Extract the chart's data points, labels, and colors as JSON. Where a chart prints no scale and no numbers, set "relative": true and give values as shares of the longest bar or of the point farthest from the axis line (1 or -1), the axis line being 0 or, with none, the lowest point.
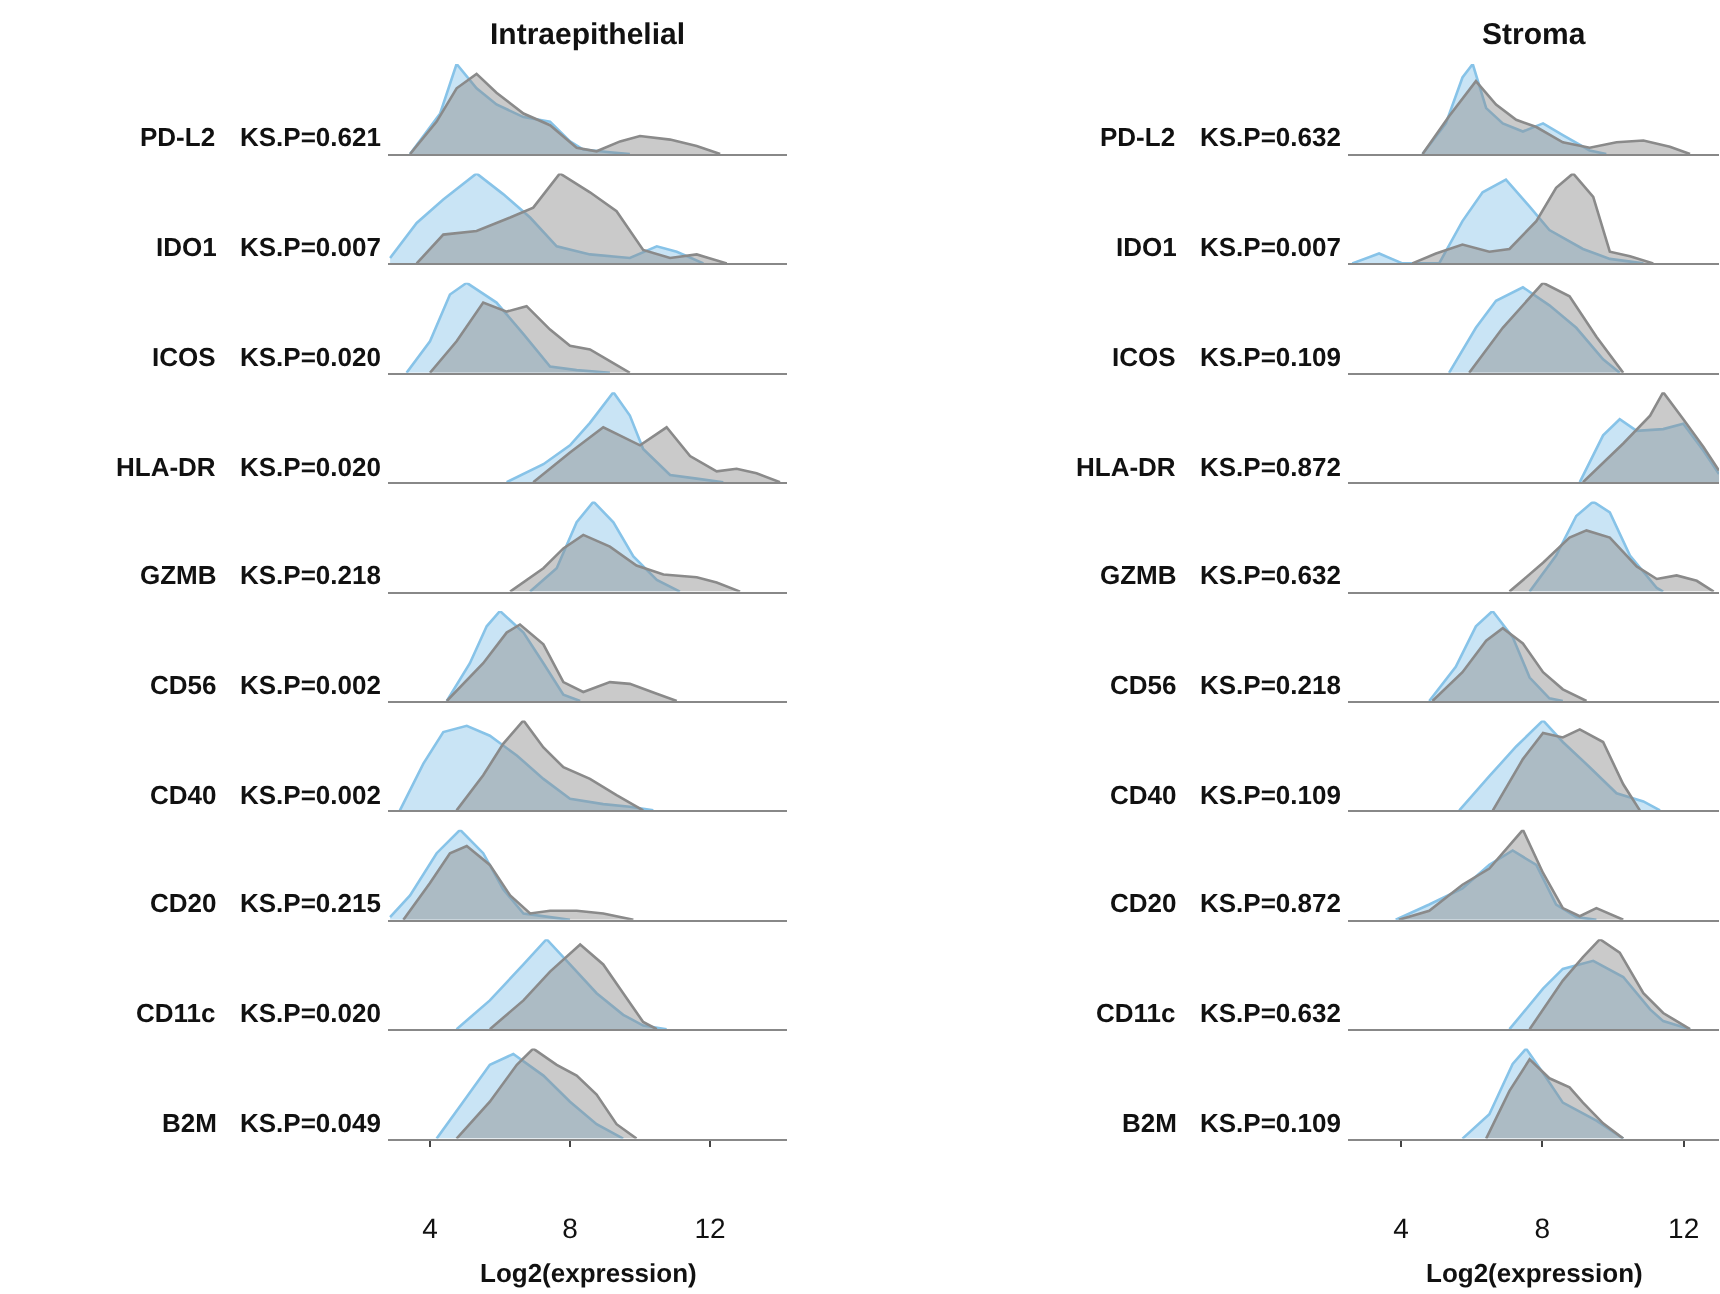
{
  "chart_data": [
    {
      "type": "area",
      "relative": true,
      "title": "Intraepithelial",
      "ylabel": "PD-L2",
      "annotations": [
        "KS.P=0.621"
      ],
      "xlim": [
        2.8,
        14.2
      ],
      "tick_labels": false,
      "series": [
        {
          "color": "#87c3e8",
          "x": [
            3.43,
            4.29,
            4.76,
            5.33,
            5.9,
            6.67,
            7.43,
            8.0,
            8.38,
            9.14,
            9.71
          ],
          "values": [
            0,
            0.45,
            1,
            0.73,
            0.55,
            0.41,
            0.36,
            0.14,
            0.05,
            0.02,
            0
          ]
        },
        {
          "color": "#8a8a8a",
          "x": [
            3.43,
            4.19,
            4.76,
            5.33,
            5.9,
            6.67,
            7.43,
            8.19,
            8.76,
            9.43,
            10.0,
            10.86,
            11.62,
            12.29
          ],
          "values": [
            0,
            0.36,
            0.73,
            0.89,
            0.68,
            0.45,
            0.32,
            0.07,
            0.03,
            0.14,
            0.2,
            0.16,
            0.09,
            0
          ]
        }
      ]
    },
    {
      "type": "area",
      "relative": true,
      "ylabel": "IDO1",
      "annotations": [
        "KS.P=0.007"
      ],
      "xlim": [
        2.8,
        14.2
      ],
      "tick_labels": false,
      "series": [
        {
          "color": "#87c3e8",
          "x": [
            2.86,
            3.62,
            4.38,
            5.33,
            6.09,
            6.86,
            7.62,
            8.57,
            9.71,
            10.48,
            11.05,
            11.81
          ],
          "values": [
            0.06,
            0.45,
            0.71,
            1,
            0.77,
            0.51,
            0.19,
            0.1,
            0.06,
            0.19,
            0.13,
            0
          ]
        },
        {
          "color": "#8a8a8a",
          "x": [
            3.62,
            4.38,
            5.33,
            6.29,
            6.95,
            7.71,
            8.57,
            9.33,
            10.09,
            10.86,
            11.62,
            12.48
          ],
          "values": [
            0,
            0.32,
            0.36,
            0.51,
            0.62,
            1,
            0.79,
            0.58,
            0.15,
            0.06,
            0.1,
            0
          ]
        }
      ]
    },
    {
      "type": "area",
      "relative": true,
      "ylabel": "ICOS",
      "annotations": [
        "KS.P=0.020"
      ],
      "xlim": [
        2.8,
        14.2
      ],
      "tick_labels": false,
      "series": [
        {
          "color": "#87c3e8",
          "x": [
            3.33,
            4.0,
            4.57,
            5.05,
            5.9,
            6.67,
            7.43,
            8.19,
            9.14
          ],
          "values": [
            0,
            0.35,
            0.87,
            1,
            0.78,
            0.43,
            0.07,
            0.03,
            0
          ]
        },
        {
          "color": "#8a8a8a",
          "x": [
            4.0,
            4.76,
            5.52,
            6.19,
            6.76,
            7.43,
            8.0,
            8.57,
            9.14,
            9.71
          ],
          "values": [
            0,
            0.35,
            0.78,
            0.68,
            0.74,
            0.48,
            0.3,
            0.26,
            0.13,
            0
          ]
        }
      ]
    },
    {
      "type": "area",
      "relative": true,
      "ylabel": "HLA-DR",
      "annotations": [
        "KS.P=0.020"
      ],
      "xlim": [
        2.8,
        14.2
      ],
      "tick_labels": false,
      "series": [
        {
          "color": "#87c3e8",
          "x": [
            6.19,
            7.24,
            8.0,
            8.57,
            9.24,
            9.71,
            10.09,
            10.86,
            11.62,
            12.38
          ],
          "values": [
            0,
            0.2,
            0.41,
            0.66,
            1,
            0.74,
            0.37,
            0.08,
            0.04,
            0
          ]
        },
        {
          "color": "#8a8a8a",
          "x": [
            6.95,
            8.0,
            8.95,
            10.0,
            10.76,
            11.43,
            12.19,
            12.76,
            13.33,
            14.0
          ],
          "values": [
            0,
            0.33,
            0.61,
            0.41,
            0.61,
            0.29,
            0.12,
            0.15,
            0.1,
            0
          ]
        }
      ]
    },
    {
      "type": "area",
      "relative": true,
      "ylabel": "GZMB",
      "annotations": [
        "KS.P=0.218"
      ],
      "xlim": [
        2.8,
        14.2
      ],
      "tick_labels": false,
      "series": [
        {
          "color": "#87c3e8",
          "x": [
            6.86,
            7.62,
            8.19,
            8.67,
            9.24,
            9.81,
            10.48,
            11.14
          ],
          "values": [
            0,
            0.26,
            0.77,
            1,
            0.77,
            0.39,
            0.13,
            0
          ]
        },
        {
          "color": "#8a8a8a",
          "x": [
            6.29,
            7.24,
            7.81,
            8.38,
            9.14,
            9.9,
            10.67,
            11.62,
            12.19,
            12.86
          ],
          "values": [
            0,
            0.26,
            0.48,
            0.63,
            0.5,
            0.29,
            0.19,
            0.16,
            0.1,
            0
          ]
        }
      ]
    },
    {
      "type": "area",
      "relative": true,
      "ylabel": "CD56",
      "annotations": [
        "KS.P=0.002"
      ],
      "xlim": [
        2.8,
        14.2
      ],
      "tick_labels": false,
      "series": [
        {
          "color": "#87c3e8",
          "x": [
            4.48,
            5.14,
            5.62,
            6.0,
            6.67,
            7.24,
            7.81,
            8.29
          ],
          "values": [
            0,
            0.42,
            0.83,
            1,
            0.76,
            0.42,
            0.07,
            0
          ]
        },
        {
          "color": "#8a8a8a",
          "x": [
            4.48,
            5.52,
            6.19,
            6.57,
            7.24,
            7.81,
            8.38,
            9.14,
            9.71,
            10.48,
            11.05
          ],
          "values": [
            0,
            0.42,
            0.76,
            0.85,
            0.63,
            0.21,
            0.1,
            0.21,
            0.19,
            0.08,
            0
          ]
        }
      ]
    },
    {
      "type": "area",
      "relative": true,
      "ylabel": "CD40",
      "annotations": [
        "KS.P=0.002"
      ],
      "xlim": [
        2.8,
        14.2
      ],
      "tick_labels": false,
      "series": [
        {
          "color": "#87c3e8",
          "x": [
            3.14,
            3.81,
            4.38,
            5.05,
            5.71,
            6.48,
            7.24,
            8.0,
            8.95,
            9.71,
            10.38
          ],
          "values": [
            0,
            0.52,
            0.87,
            0.94,
            0.83,
            0.61,
            0.35,
            0.13,
            0.07,
            0.04,
            0
          ]
        },
        {
          "color": "#8a8a8a",
          "x": [
            4.76,
            5.52,
            6.09,
            6.67,
            7.24,
            7.81,
            8.57,
            9.33,
            10.09
          ],
          "values": [
            0,
            0.39,
            0.74,
            1,
            0.7,
            0.48,
            0.35,
            0.17,
            0
          ]
        }
      ]
    },
    {
      "type": "area",
      "relative": true,
      "ylabel": "CD20",
      "annotations": [
        "KS.P=0.215"
      ],
      "xlim": [
        2.8,
        14.2
      ],
      "tick_labels": false,
      "series": [
        {
          "color": "#87c3e8",
          "x": [
            2.86,
            3.43,
            4.19,
            4.86,
            5.52,
            6.09,
            6.67,
            7.43,
            8.0
          ],
          "values": [
            0.03,
            0.27,
            0.74,
            1,
            0.74,
            0.34,
            0.07,
            0.03,
            0
          ]
        },
        {
          "color": "#8a8a8a",
          "x": [
            3.24,
            4.0,
            4.57,
            5.05,
            5.71,
            6.29,
            6.86,
            7.43,
            8.19,
            8.95,
            9.81
          ],
          "values": [
            0,
            0.41,
            0.74,
            0.82,
            0.61,
            0.27,
            0.07,
            0.1,
            0.1,
            0.07,
            0
          ]
        }
      ]
    },
    {
      "type": "area",
      "relative": true,
      "ylabel": "CD11c",
      "annotations": [
        "KS.P=0.020"
      ],
      "xlim": [
        2.8,
        14.2
      ],
      "tick_labels": false,
      "series": [
        {
          "color": "#87c3e8",
          "x": [
            4.76,
            5.71,
            6.67,
            7.33,
            8.0,
            8.76,
            9.52,
            10.09,
            10.76
          ],
          "values": [
            0,
            0.32,
            0.72,
            1,
            0.72,
            0.4,
            0.16,
            0.04,
            0
          ]
        },
        {
          "color": "#8a8a8a",
          "x": [
            5.71,
            6.67,
            7.43,
            8.29,
            8.95,
            9.52,
            10.09,
            10.48
          ],
          "values": [
            0,
            0.32,
            0.64,
            0.94,
            0.72,
            0.4,
            0.08,
            0
          ]
        }
      ]
    },
    {
      "type": "area",
      "relative": true,
      "ylabel": "B2M",
      "annotations": [
        "KS.P=0.049"
      ],
      "xlim": [
        2.8,
        14.2
      ],
      "xticks": [
        4,
        8,
        12
      ],
      "xlabel": "Log2(expression)",
      "tick_labels": "x",
      "series": [
        {
          "color": "#87c3e8",
          "x": [
            4.19,
            4.95,
            5.71,
            6.38,
            7.24,
            8.0,
            8.76,
            9.52
          ],
          "values": [
            0,
            0.41,
            0.82,
            0.94,
            0.7,
            0.41,
            0.16,
            0
          ]
        },
        {
          "color": "#8a8a8a",
          "x": [
            4.76,
            5.71,
            6.48,
            6.95,
            7.62,
            8.19,
            8.76,
            9.33,
            9.9
          ],
          "values": [
            0,
            0.41,
            0.82,
            1,
            0.82,
            0.7,
            0.49,
            0.16,
            0
          ]
        }
      ]
    },
    {
      "type": "area",
      "relative": true,
      "title": "Stroma",
      "ylabel": "PD-L2",
      "annotations": [
        "KS.P=0.632"
      ],
      "xlim": [
        2.5,
        13.0
      ],
      "tick_labels": false,
      "series": [
        {
          "color": "#87c3e8",
          "x": [
            4.61,
            5.27,
            5.74,
            6.03,
            6.41,
            6.88,
            7.45,
            8.02,
            8.58,
            9.34,
            9.81
          ],
          "values": [
            0,
            0.34,
            0.85,
            1,
            0.51,
            0.34,
            0.25,
            0.34,
            0.21,
            0.04,
            0
          ]
        },
        {
          "color": "#8a8a8a",
          "x": [
            4.61,
            5.36,
            6.12,
            6.69,
            7.26,
            7.83,
            8.58,
            9.34,
            10.1,
            10.86,
            11.61,
            12.18
          ],
          "values": [
            0,
            0.42,
            0.81,
            0.55,
            0.38,
            0.3,
            0.13,
            0.07,
            0.13,
            0.15,
            0.08,
            0
          ]
        }
      ]
    },
    {
      "type": "area",
      "relative": true,
      "ylabel": "IDO1",
      "annotations": [
        "KS.P=0.007"
      ],
      "xlim": [
        2.5,
        13.0
      ],
      "tick_labels": false,
      "series": [
        {
          "color": "#87c3e8",
          "x": [
            2.62,
            3.38,
            4.04,
            5.08,
            5.74,
            6.31,
            6.97,
            7.64,
            8.2,
            9.15,
            9.91,
            10.86
          ],
          "values": [
            0,
            0.11,
            0,
            0,
            0.47,
            0.79,
            0.93,
            0.63,
            0.37,
            0.16,
            0.05,
            0
          ]
        },
        {
          "color": "#8a8a8a",
          "x": [
            4.32,
            4.99,
            5.74,
            6.5,
            7.07,
            7.83,
            8.39,
            8.87,
            9.44,
            9.91,
            10.48,
            11.14
          ],
          "values": [
            0,
            0.11,
            0.21,
            0.13,
            0.16,
            0.47,
            0.84,
            1,
            0.74,
            0.13,
            0.08,
            0
          ]
        }
      ]
    },
    {
      "type": "area",
      "relative": true,
      "ylabel": "ICOS",
      "annotations": [
        "KS.P=0.109"
      ],
      "xlim": [
        2.5,
        13.0
      ],
      "tick_labels": false,
      "series": [
        {
          "color": "#87c3e8",
          "x": [
            5.36,
            6.12,
            6.69,
            7.45,
            8.2,
            8.96,
            9.72,
            10.19
          ],
          "values": [
            0,
            0.5,
            0.8,
            0.95,
            0.75,
            0.5,
            0.15,
            0
          ]
        },
        {
          "color": "#8a8a8a",
          "x": [
            5.93,
            6.88,
            8.02,
            8.77,
            9.53,
            10.29
          ],
          "values": [
            0,
            0.5,
            1,
            0.85,
            0.4,
            0
          ]
        }
      ]
    },
    {
      "type": "area",
      "relative": true,
      "ylabel": "HLA-DR",
      "annotations": [
        "KS.P=0.872"
      ],
      "xlim": [
        2.5,
        13.0
      ],
      "tick_labels": false,
      "series": [
        {
          "color": "#87c3e8",
          "x": [
            9.06,
            9.72,
            10.19,
            10.67,
            11.42,
            11.99,
            12.56,
            13.0
          ],
          "values": [
            0,
            0.52,
            0.7,
            0.57,
            0.59,
            0.65,
            0.35,
            0.09
          ]
        },
        {
          "color": "#8a8a8a",
          "x": [
            9.15,
            10.29,
            11.05,
            11.42,
            11.99,
            12.56,
            13.0
          ],
          "values": [
            0,
            0.43,
            0.74,
            1,
            0.7,
            0.39,
            0.13
          ]
        }
      ]
    },
    {
      "type": "area",
      "relative": true,
      "ylabel": "GZMB",
      "annotations": [
        "KS.P=0.632"
      ],
      "xlim": [
        2.5,
        13.0
      ],
      "tick_labels": false,
      "series": [
        {
          "color": "#87c3e8",
          "x": [
            7.64,
            8.39,
            8.96,
            9.44,
            9.91,
            10.48,
            11.24,
            11.42
          ],
          "values": [
            0,
            0.4,
            0.84,
            1,
            0.88,
            0.4,
            0.04,
            0
          ]
        },
        {
          "color": "#8a8a8a",
          "x": [
            7.07,
            8.02,
            8.77,
            9.25,
            9.91,
            10.67,
            11.24,
            11.8,
            12.37,
            12.85
          ],
          "values": [
            0,
            0.32,
            0.6,
            0.68,
            0.6,
            0.28,
            0.14,
            0.18,
            0.12,
            0
          ]
        }
      ]
    },
    {
      "type": "area",
      "relative": true,
      "ylabel": "CD56",
      "annotations": [
        "KS.P=0.218"
      ],
      "xlim": [
        2.5,
        13.0
      ],
      "tick_labels": false,
      "series": [
        {
          "color": "#87c3e8",
          "x": [
            4.8,
            5.55,
            6.12,
            6.59,
            7.16,
            7.64,
            8.2,
            8.58
          ],
          "values": [
            0,
            0.38,
            0.83,
            1,
            0.71,
            0.26,
            0.03,
            0
          ]
        },
        {
          "color": "#8a8a8a",
          "x": [
            4.89,
            5.74,
            6.41,
            6.88,
            7.45,
            8.02,
            8.58,
            9.25
          ],
          "values": [
            0,
            0.32,
            0.67,
            0.81,
            0.64,
            0.32,
            0.13,
            0
          ]
        }
      ]
    },
    {
      "type": "area",
      "relative": true,
      "ylabel": "CD40",
      "annotations": [
        "KS.P=0.109"
      ],
      "xlim": [
        2.5,
        13.0
      ],
      "tick_labels": false,
      "series": [
        {
          "color": "#87c3e8",
          "x": [
            5.65,
            6.5,
            7.26,
            8.02,
            8.58,
            9.34,
            10.1,
            10.86,
            11.33
          ],
          "values": [
            0,
            0.38,
            0.71,
            1,
            0.76,
            0.48,
            0.19,
            0.1,
            0
          ]
        },
        {
          "color": "#8a8a8a",
          "x": [
            6.6,
            7.45,
            8.02,
            8.58,
            9.06,
            9.72,
            10.29,
            10.76
          ],
          "values": [
            0,
            0.57,
            0.86,
            0.81,
            0.9,
            0.76,
            0.29,
            0
          ]
        }
      ]
    },
    {
      "type": "area",
      "relative": true,
      "ylabel": "CD20",
      "annotations": [
        "KS.P=0.872"
      ],
      "xlim": [
        2.5,
        13.0
      ],
      "tick_labels": false,
      "series": [
        {
          "color": "#87c3e8",
          "x": [
            3.85,
            4.8,
            5.74,
            6.5,
            7.16,
            7.83,
            8.39,
            8.96,
            9.53
          ],
          "values": [
            0,
            0.17,
            0.35,
            0.61,
            0.77,
            0.61,
            0.17,
            0.03,
            0
          ]
        },
        {
          "color": "#8a8a8a",
          "x": [
            3.94,
            4.8,
            5.74,
            6.5,
            7.45,
            8.02,
            8.58,
            9.06,
            9.53,
            10.29
          ],
          "values": [
            0,
            0.1,
            0.39,
            0.57,
            1,
            0.52,
            0.13,
            0.04,
            0.13,
            0
          ]
        }
      ]
    },
    {
      "type": "area",
      "relative": true,
      "ylabel": "CD11c",
      "annotations": [
        "KS.P=0.632"
      ],
      "xlim": [
        2.5,
        13.0
      ],
      "tick_labels": false,
      "series": [
        {
          "color": "#87c3e8",
          "x": [
            7.07,
            8.02,
            8.58,
            9.44,
            10.29,
            11.05,
            11.42,
            12.18
          ],
          "values": [
            0,
            0.45,
            0.67,
            0.76,
            0.58,
            0.22,
            0.09,
            0
          ]
        },
        {
          "color": "#8a8a8a",
          "x": [
            7.64,
            8.58,
            9.15,
            9.63,
            10.19,
            10.86,
            11.42,
            12.18
          ],
          "values": [
            0,
            0.54,
            0.8,
            1,
            0.85,
            0.4,
            0.18,
            0
          ]
        }
      ]
    },
    {
      "type": "area",
      "relative": true,
      "ylabel": "B2M",
      "annotations": [
        "KS.P=0.109"
      ],
      "xlim": [
        2.5,
        13.0
      ],
      "xticks": [
        4,
        8,
        12
      ],
      "xlabel": "Log2(expression)",
      "tick_labels": "x",
      "series": [
        {
          "color": "#87c3e8",
          "x": [
            5.74,
            6.5,
            7.16,
            7.54,
            8.02,
            8.58,
            9.53,
            10.29
          ],
          "values": [
            0,
            0.27,
            0.83,
            1,
            0.73,
            0.4,
            0.2,
            0
          ]
        },
        {
          "color": "#8a8a8a",
          "x": [
            6.41,
            7.07,
            7.64,
            8.2,
            8.77,
            9.15,
            9.72,
            10.29
          ],
          "values": [
            0,
            0.53,
            0.88,
            0.67,
            0.57,
            0.4,
            0.17,
            0
          ]
        }
      ]
    }
  ]
}
